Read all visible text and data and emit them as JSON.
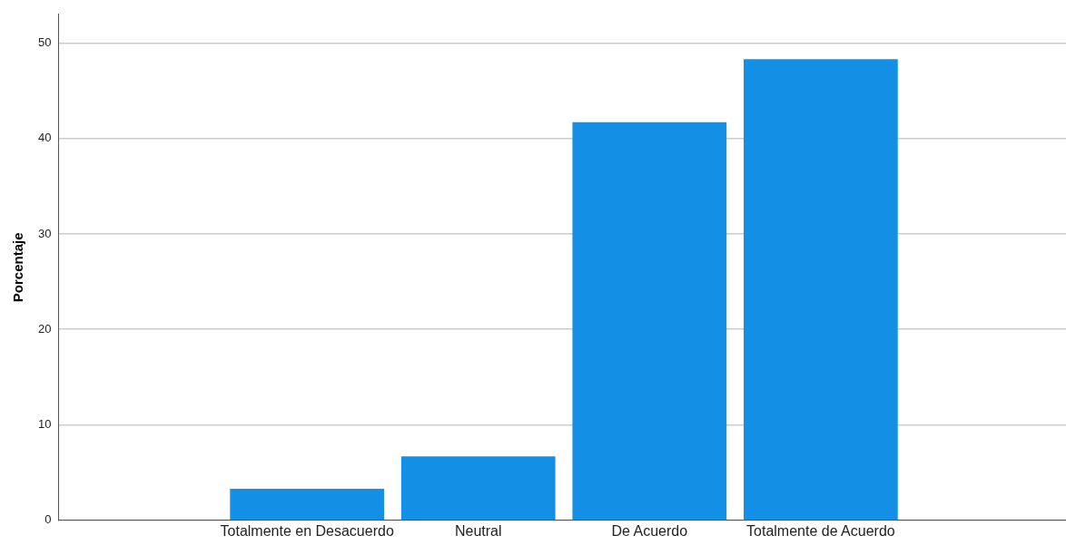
{
  "chart_data": {
    "type": "bar",
    "ylabel": "Porcentaje",
    "categories": [
      "Totalmente en Desacuerdo",
      "Neutral",
      "De Acuerdo",
      "Totalmente de Acuerdo"
    ],
    "values": [
      3.3,
      6.7,
      41.7,
      48.3
    ],
    "color": "#1390e6",
    "ylim": [
      0,
      53
    ],
    "yticks": [
      0,
      10,
      20,
      30,
      40,
      50
    ],
    "grid": "y",
    "legend": false
  }
}
